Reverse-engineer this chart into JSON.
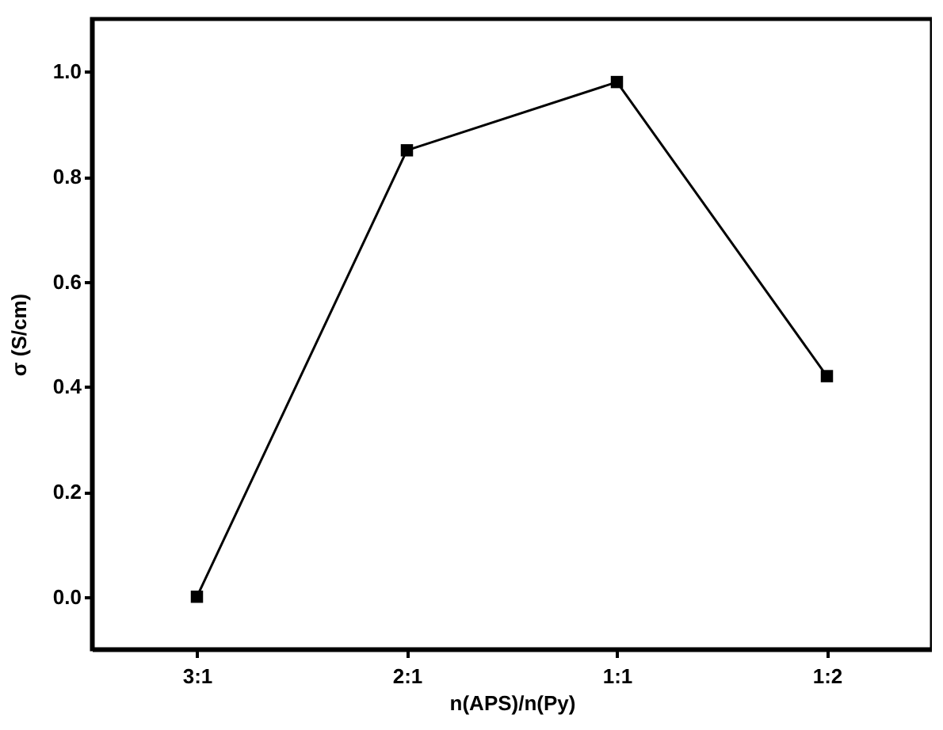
{
  "chart_data": {
    "type": "line",
    "xlabel": "n(APS)/n(Py)",
    "ylabel": "σ (S/cm)",
    "categories": [
      "3:1",
      "2:1",
      "1:1",
      "1:2"
    ],
    "series": [
      {
        "color": "#000000",
        "values": [
          0.0,
          0.85,
          0.98,
          0.42
        ]
      }
    ],
    "ylim": [
      -0.1,
      1.1
    ],
    "yticks": [
      {
        "value": 0.0,
        "label": "0.0"
      },
      {
        "value": 0.2,
        "label": "0.2"
      },
      {
        "value": 0.4,
        "label": "0.4"
      },
      {
        "value": 0.6,
        "label": "0.6"
      },
      {
        "value": 0.8,
        "label": "0.8"
      },
      {
        "value": 1.0,
        "label": "1.0"
      }
    ],
    "grid": false,
    "marker": "square",
    "line_style": "solid"
  }
}
